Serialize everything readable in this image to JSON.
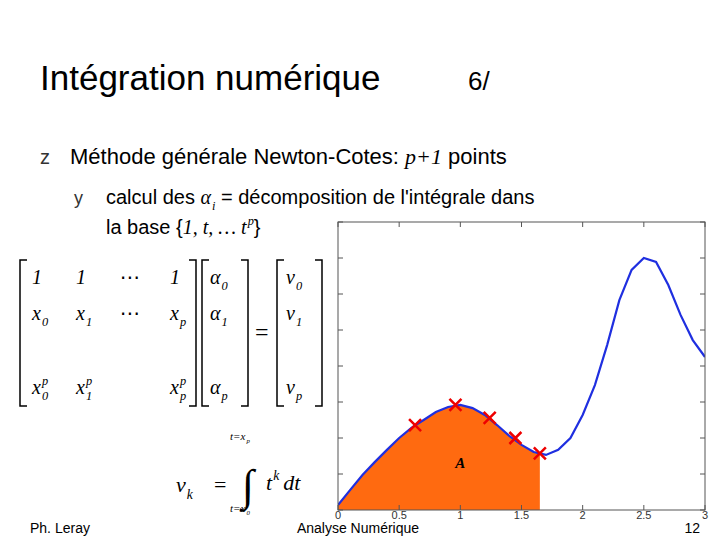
{
  "slide": {
    "title": "Intégration numérique",
    "number_tag": "6/",
    "bullet_icon": "z",
    "bullet": [
      {
        "text": "Méthode générale Newton-Cotes: "
      },
      {
        "base": "p+1"
      },
      {
        "text": " points"
      }
    ],
    "sub_icon": "y",
    "sub_line1": [
      {
        "text": "calcul des "
      },
      {
        "base": "α",
        "sub": "i"
      },
      {
        "text": " = décomposition de l'intégrale dans"
      }
    ],
    "sub_line2": [
      {
        "text": "la base {"
      },
      {
        "base": "1, t, … t",
        "sup": "p"
      },
      {
        "text": "}"
      }
    ],
    "matrix": [
      [
        {
          "base": "1"
        },
        {
          "base": "1"
        },
        {
          "text": "⋯"
        },
        {
          "base": "1"
        }
      ],
      [
        {
          "base": "x",
          "sub": "0"
        },
        {
          "base": "x",
          "sub": "1"
        },
        {
          "text": "⋯"
        },
        {
          "base": "x",
          "sub": "p"
        }
      ],
      [
        {
          "base": "x",
          "sub": "0",
          "sup": "p"
        },
        {
          "base": "x",
          "sub": "1",
          "sup": "p"
        },
        null,
        {
          "base": "x",
          "sub": "p",
          "sup": "p"
        }
      ]
    ],
    "alpha": [
      {
        "base": "α",
        "sub": "0"
      },
      {
        "base": "α",
        "sub": "1"
      },
      {
        "base": "α",
        "sub": "p"
      }
    ],
    "equals": "=",
    "nu": [
      {
        "base": "ν",
        "sub": "0"
      },
      {
        "base": "ν",
        "sub": "1"
      },
      {
        "base": "ν",
        "sub": "p"
      }
    ],
    "formula": {
      "lhs": {
        "base": "ν",
        "sub": "k"
      },
      "eq": "=",
      "integral": "∫",
      "upper": {
        "base": "t=x",
        "sub": "p"
      },
      "lower": {
        "base": "t=x",
        "sub": "0"
      },
      "integrand": {
        "base": "t",
        "sup": "k"
      },
      "dt": {
        "base": "dt"
      }
    },
    "footer": {
      "left": "Ph. Leray",
      "center": "Analyse Numérique",
      "page": "12"
    }
  },
  "chart_data": {
    "type": "line",
    "xlim": [
      0,
      3
    ],
    "xticks": [
      0,
      0.5,
      1,
      1.5,
      2,
      2.5,
      3
    ],
    "ylim": [
      0,
      8
    ],
    "yticks": [
      0,
      1,
      2,
      3,
      4,
      5,
      6,
      7,
      8
    ],
    "tick_labels": "x",
    "series": [
      {
        "type": "area",
        "color": "#ff6a10",
        "x": [
          0,
          0.1,
          0.2,
          0.3,
          0.4,
          0.5,
          0.6,
          0.7,
          0.8,
          0.9,
          1.0,
          1.1,
          1.2,
          1.3,
          1.4,
          1.5,
          1.6,
          1.65
        ],
        "values": [
          0.14,
          0.56,
          0.97,
          1.33,
          1.67,
          2.0,
          2.28,
          2.5,
          2.72,
          2.86,
          2.92,
          2.83,
          2.64,
          2.36,
          2.06,
          1.81,
          1.61,
          1.57
        ]
      },
      {
        "type": "line",
        "color": "#1f2fe0",
        "x": [
          0,
          0.1,
          0.2,
          0.3,
          0.4,
          0.5,
          0.6,
          0.7,
          0.8,
          0.9,
          1.0,
          1.1,
          1.2,
          1.3,
          1.4,
          1.5,
          1.6,
          1.7,
          1.8,
          1.9,
          2.0,
          2.1,
          2.2,
          2.3,
          2.4,
          2.5,
          2.6,
          2.7,
          2.8,
          2.9,
          3.0
        ],
        "values": [
          0.14,
          0.56,
          0.97,
          1.33,
          1.67,
          2.0,
          2.28,
          2.5,
          2.72,
          2.86,
          2.92,
          2.83,
          2.64,
          2.36,
          2.06,
          1.81,
          1.61,
          1.53,
          1.67,
          2.0,
          2.64,
          3.47,
          4.58,
          5.83,
          6.67,
          7.0,
          6.89,
          6.25,
          5.42,
          4.72,
          4.25
        ]
      },
      {
        "type": "scatter",
        "color": "#ee0000",
        "marker": "x",
        "x": [
          0.63,
          0.96,
          1.24,
          1.45,
          1.65
        ],
        "values": [
          2.36,
          2.92,
          2.56,
          2.0,
          1.57
        ]
      }
    ],
    "annotations": [
      {
        "text": "A",
        "x": 1.0,
        "y": 1.17
      }
    ]
  }
}
